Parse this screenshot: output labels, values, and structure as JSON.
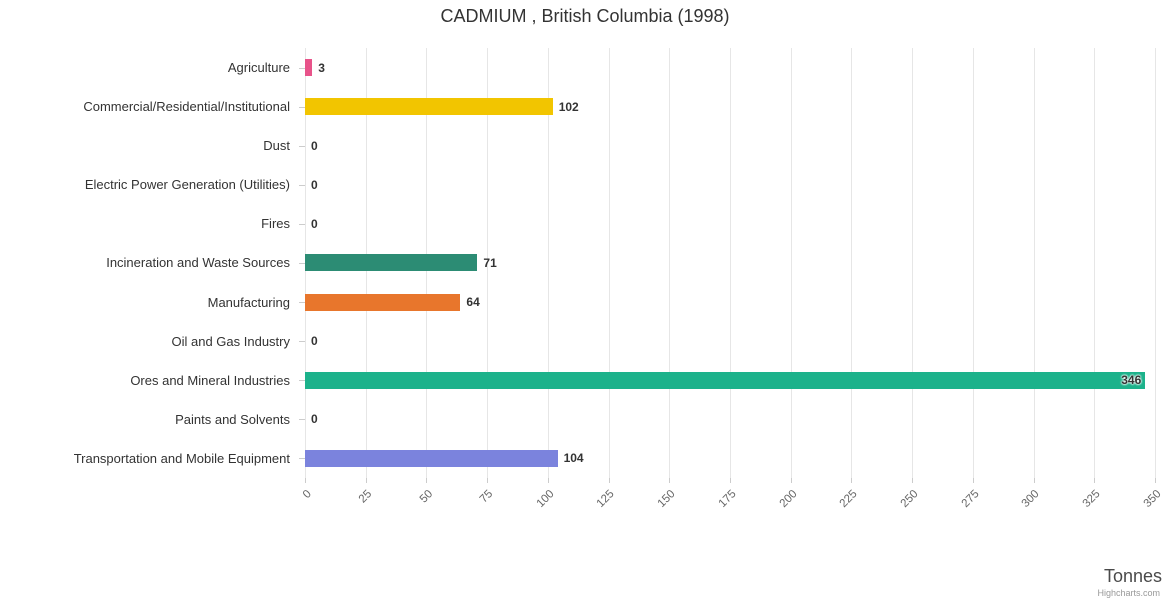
{
  "credit": "Highcharts.com",
  "chart_data": {
    "type": "bar",
    "orientation": "horizontal",
    "title": "CADMIUM , British Columbia (1998)",
    "xlabel": "Tonnes",
    "categories": [
      "Agriculture",
      "Commercial/Residential/Institutional",
      "Dust",
      "Electric Power Generation (Utilities)",
      "Fires",
      "Incineration and Waste Sources",
      "Manufacturing",
      "Oil and Gas Industry",
      "Ores and Mineral Industries",
      "Paints and Solvents",
      "Transportation and Mobile Equipment"
    ],
    "values": [
      3,
      102,
      0,
      0,
      0,
      71,
      64,
      0,
      346,
      0,
      104
    ],
    "colors": [
      "#e8538a",
      "#f2c500",
      "#bbbbbb",
      "#bbbbbb",
      "#bbbbbb",
      "#2c8c74",
      "#e8762c",
      "#bbbbbb",
      "#1cb28b",
      "#bbbbbb",
      "#7b83dd"
    ],
    "xlim": [
      0,
      350
    ],
    "xticks": [
      0,
      25,
      50,
      75,
      100,
      125,
      150,
      175,
      200,
      225,
      250,
      275,
      300,
      325,
      350
    ],
    "grid": true,
    "legend": false
  }
}
